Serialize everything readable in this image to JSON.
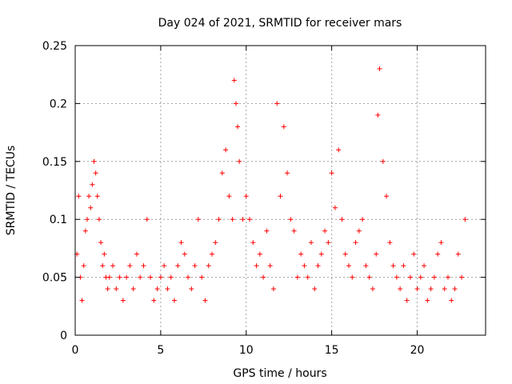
{
  "chart_data": {
    "type": "scatter",
    "title": "Day 024 of 2021, SRMTID for receiver mars",
    "xlabel": "GPS time / hours",
    "ylabel": "SRMTID / TECUs",
    "xlim": [
      0,
      24
    ],
    "ylim": [
      0,
      0.25
    ],
    "xticks": [
      {
        "value": 0,
        "label": "0"
      },
      {
        "value": 5,
        "label": "5"
      },
      {
        "value": 10,
        "label": "10"
      },
      {
        "value": 15,
        "label": "15"
      },
      {
        "value": 20,
        "label": "20"
      }
    ],
    "yticks": [
      {
        "value": 0,
        "label": "0"
      },
      {
        "value": 0.05,
        "label": "0.05"
      },
      {
        "value": 0.1,
        "label": "0.1"
      },
      {
        "value": 0.15,
        "label": "0.15"
      },
      {
        "value": 0.2,
        "label": "0.2"
      },
      {
        "value": 0.25,
        "label": "0.25"
      }
    ],
    "grid": true,
    "marker": "+",
    "marker_color": "#ff0000",
    "series": [
      {
        "name": "SRMTID",
        "x": [
          0.1,
          0.2,
          0.3,
          0.4,
          0.5,
          0.6,
          0.7,
          0.8,
          0.9,
          1.0,
          1.1,
          1.2,
          1.3,
          1.4,
          1.5,
          1.6,
          1.7,
          1.8,
          1.9,
          2.0,
          2.2,
          2.4,
          2.6,
          2.8,
          3.0,
          3.2,
          3.4,
          3.6,
          3.8,
          4.0,
          4.2,
          4.4,
          4.6,
          4.8,
          5.0,
          5.2,
          5.4,
          5.6,
          5.8,
          6.0,
          6.2,
          6.4,
          6.6,
          6.8,
          7.0,
          7.2,
          7.4,
          7.6,
          7.8,
          8.0,
          8.2,
          8.4,
          8.6,
          8.8,
          9.0,
          9.2,
          9.3,
          9.4,
          9.5,
          9.6,
          9.8,
          10.0,
          10.2,
          10.4,
          10.6,
          10.8,
          11.0,
          11.2,
          11.4,
          11.6,
          11.8,
          12.0,
          12.2,
          12.4,
          12.6,
          12.8,
          13.0,
          13.2,
          13.4,
          13.6,
          13.8,
          14.0,
          14.2,
          14.4,
          14.6,
          14.8,
          15.0,
          15.2,
          15.4,
          15.6,
          15.8,
          16.0,
          16.2,
          16.4,
          16.6,
          16.8,
          17.0,
          17.2,
          17.4,
          17.6,
          17.7,
          17.8,
          18.0,
          18.2,
          18.4,
          18.6,
          18.8,
          19.0,
          19.2,
          19.4,
          19.6,
          19.8,
          20.0,
          20.2,
          20.4,
          20.6,
          20.8,
          21.0,
          21.2,
          21.4,
          21.6,
          21.8,
          22.0,
          22.2,
          22.4,
          22.6,
          22.8
        ],
        "y": [
          0.07,
          0.12,
          0.05,
          0.03,
          0.06,
          0.09,
          0.1,
          0.12,
          0.11,
          0.13,
          0.15,
          0.14,
          0.12,
          0.1,
          0.08,
          0.06,
          0.07,
          0.05,
          0.04,
          0.05,
          0.06,
          0.04,
          0.05,
          0.03,
          0.05,
          0.06,
          0.04,
          0.07,
          0.05,
          0.06,
          0.1,
          0.05,
          0.03,
          0.04,
          0.05,
          0.06,
          0.04,
          0.05,
          0.03,
          0.06,
          0.08,
          0.07,
          0.05,
          0.04,
          0.06,
          0.1,
          0.05,
          0.03,
          0.06,
          0.07,
          0.08,
          0.1,
          0.14,
          0.16,
          0.12,
          0.1,
          0.22,
          0.2,
          0.18,
          0.15,
          0.1,
          0.12,
          0.1,
          0.08,
          0.06,
          0.07,
          0.05,
          0.09,
          0.06,
          0.04,
          0.2,
          0.12,
          0.18,
          0.14,
          0.1,
          0.09,
          0.05,
          0.07,
          0.06,
          0.05,
          0.08,
          0.04,
          0.06,
          0.07,
          0.09,
          0.08,
          0.14,
          0.11,
          0.16,
          0.1,
          0.07,
          0.06,
          0.05,
          0.08,
          0.09,
          0.1,
          0.06,
          0.05,
          0.04,
          0.07,
          0.19,
          0.23,
          0.15,
          0.12,
          0.08,
          0.06,
          0.05,
          0.04,
          0.06,
          0.03,
          0.05,
          0.07,
          0.04,
          0.05,
          0.06,
          0.03,
          0.04,
          0.05,
          0.07,
          0.08,
          0.04,
          0.05,
          0.03,
          0.04,
          0.07,
          0.05,
          0.1
        ]
      }
    ]
  }
}
